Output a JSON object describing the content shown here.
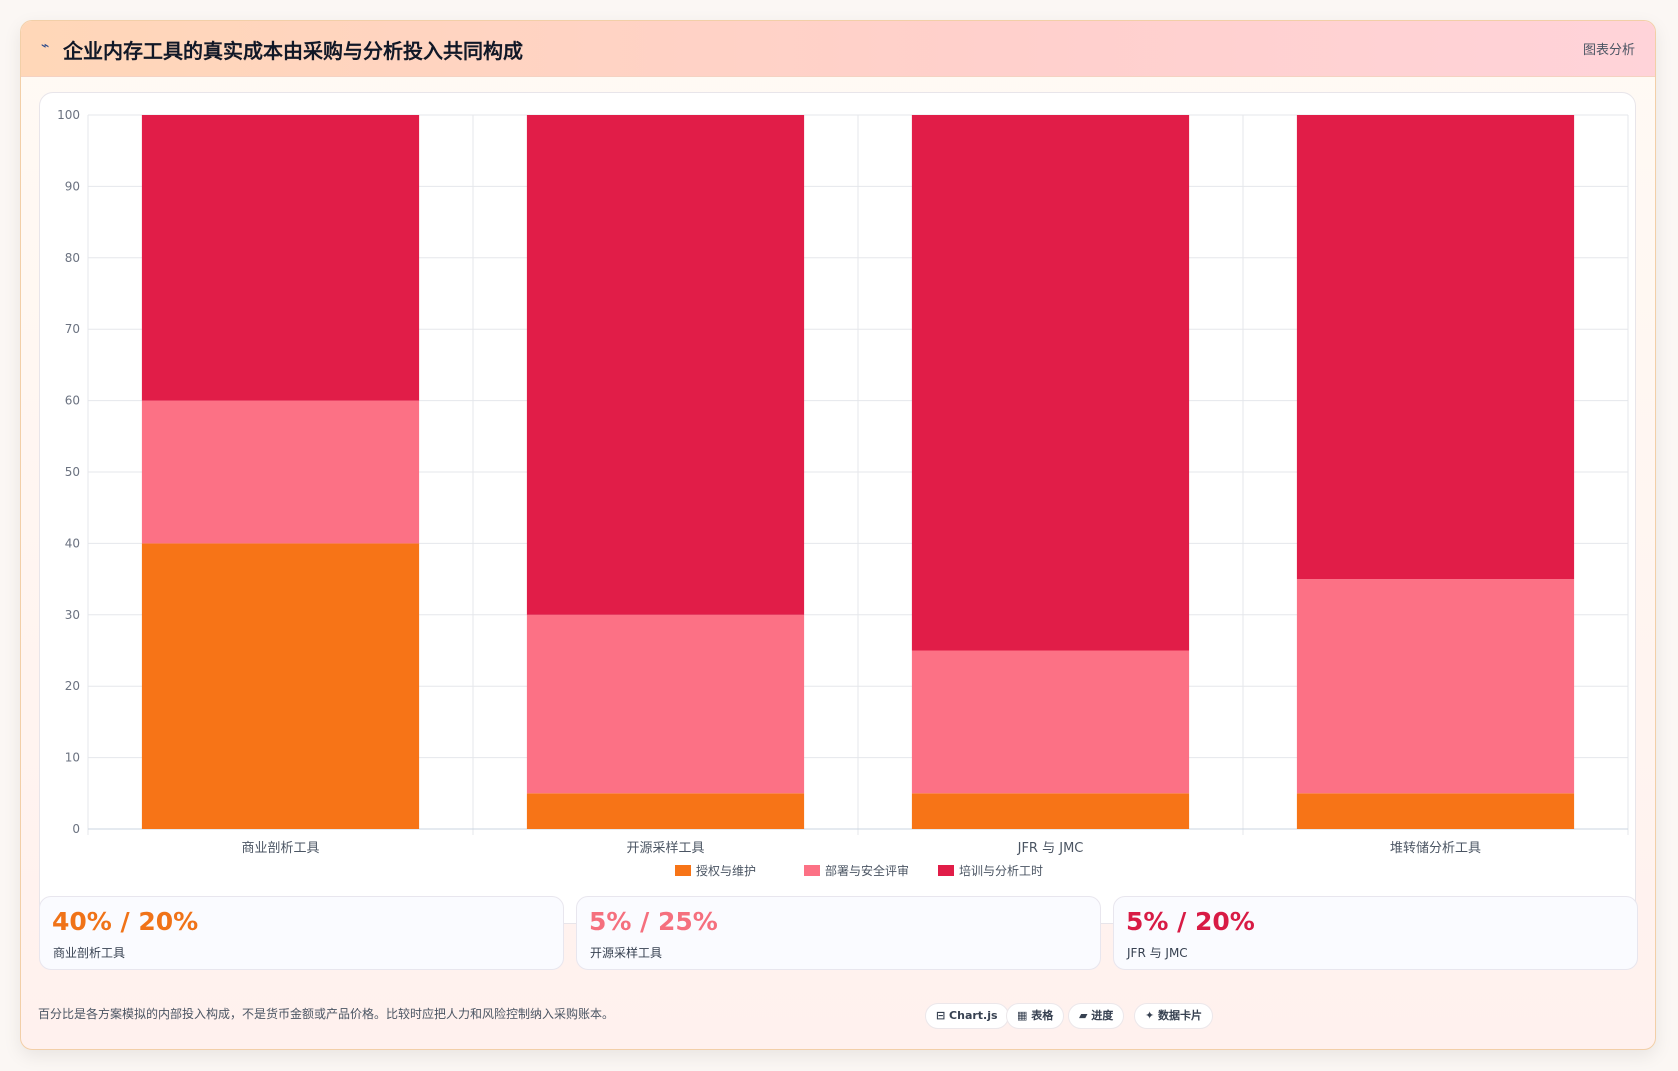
{
  "header": {
    "icon": "chart-icon",
    "title": "企业内存工具的真实成本由采购与分析投入共同构成",
    "tag": "图表分析"
  },
  "colors": {
    "license": "#f77417",
    "deploy": "#fc7185",
    "training": "#e11d48",
    "grid": "#e5e7eb",
    "axis_text": "#6b7280"
  },
  "chart_data": {
    "type": "bar",
    "stacked": true,
    "categories": [
      "商业剖析工具",
      "开源采样工具",
      "JFR 与 JMC",
      "堆转储分析工具"
    ],
    "series": [
      {
        "name": "授权与维护",
        "values": [
          40,
          5,
          5,
          5
        ]
      },
      {
        "name": "部署与安全评审",
        "values": [
          20,
          25,
          20,
          30
        ]
      },
      {
        "name": "培训与分析工时",
        "values": [
          40,
          70,
          75,
          65
        ]
      }
    ],
    "ylim": [
      0,
      100
    ],
    "yticks": [
      0,
      10,
      20,
      30,
      40,
      50,
      60,
      70,
      80,
      90,
      100
    ],
    "grid": true,
    "legend": "bottom"
  },
  "stats": [
    {
      "value": "40% / 20%",
      "label": "商业剖析工具"
    },
    {
      "value": "5% / 25%",
      "label": "开源采样工具"
    },
    {
      "value": "5% / 20%",
      "label": "JFR 与 JMC"
    }
  ],
  "footer": {
    "note": "百分比是各方案模拟的内部投入构成，不是货币金额或产品价格。比较时应把人力和风险控制纳入采购账本。",
    "chips": [
      "⊟ Chart.js",
      "▦ 表格",
      "▰ 进度",
      "✦ 数据卡片"
    ]
  }
}
